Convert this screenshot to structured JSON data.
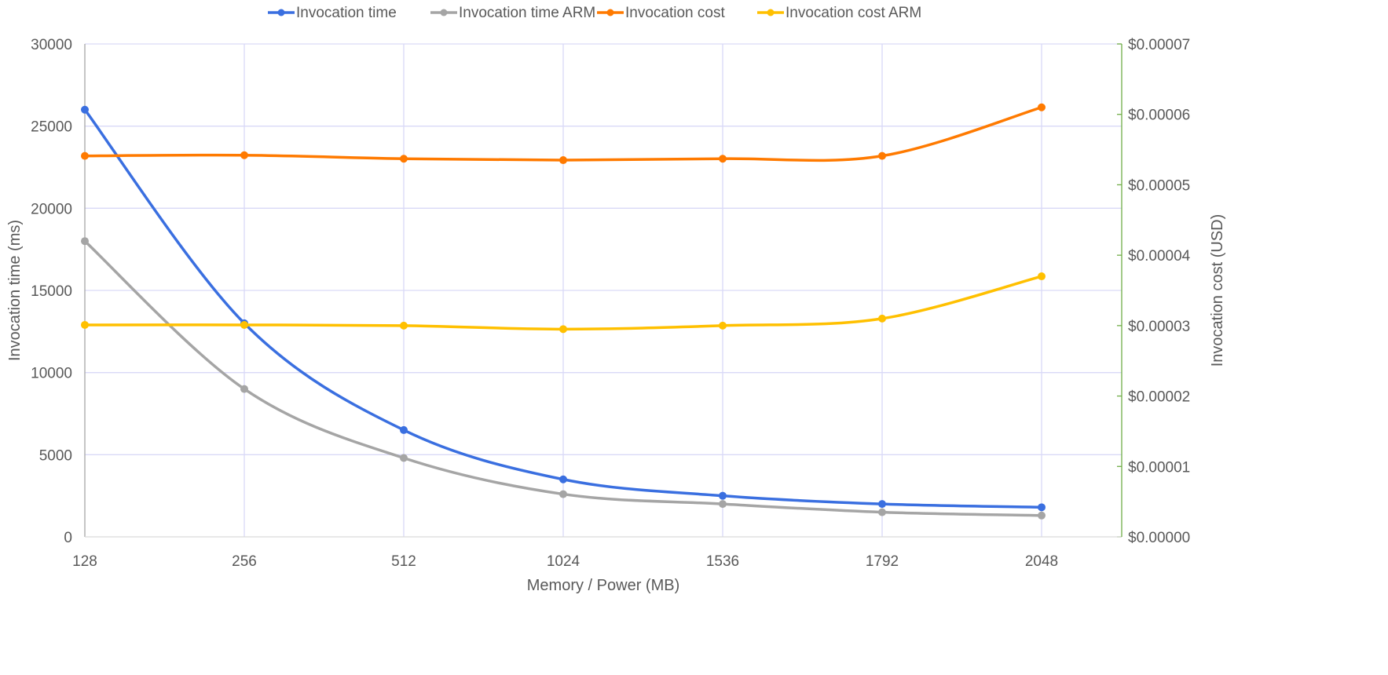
{
  "chart_data": {
    "type": "line",
    "title": "",
    "xlabel": "Memory / Power (MB)",
    "ylabel": "Invocation time (ms)",
    "y2label": "Invocation cost (USD)",
    "categories": [
      "128",
      "256",
      "512",
      "1024",
      "1536",
      "1792",
      "2048"
    ],
    "ylim": [
      0,
      30000
    ],
    "yticks": [
      "0",
      "5000",
      "10000",
      "15000",
      "20000",
      "25000",
      "30000"
    ],
    "y2lim": [
      0,
      7e-05
    ],
    "y2ticks": [
      "$0.00000",
      "$0.00001",
      "$0.00002",
      "$0.00003",
      "$0.00004",
      "$0.00005",
      "$0.00006",
      "$0.00007"
    ],
    "grid": true,
    "smooth": true,
    "legend_position": "top",
    "axis_colors": {
      "left": "#a6a6a6",
      "right": "#70ad47"
    },
    "series": [
      {
        "name": "Invocation time",
        "axis": "left",
        "color": "#3a6fe0",
        "values": [
          26000,
          13000,
          6500,
          3500,
          2500,
          2000,
          1800
        ]
      },
      {
        "name": "Invocation time ARM",
        "axis": "left",
        "color": "#a5a5a5",
        "values": [
          18000,
          9000,
          4800,
          2600,
          2000,
          1500,
          1300
        ]
      },
      {
        "name": "Invocation cost",
        "axis": "right",
        "color": "#ff7a00",
        "values": [
          5.41e-05,
          5.42e-05,
          5.37e-05,
          5.35e-05,
          5.37e-05,
          5.41e-05,
          6.1e-05
        ]
      },
      {
        "name": "Invocation cost ARM",
        "axis": "right",
        "color": "#ffc000",
        "values": [
          3.01e-05,
          3.01e-05,
          3e-05,
          2.95e-05,
          3e-05,
          3.1e-05,
          3.7e-05
        ]
      }
    ]
  }
}
